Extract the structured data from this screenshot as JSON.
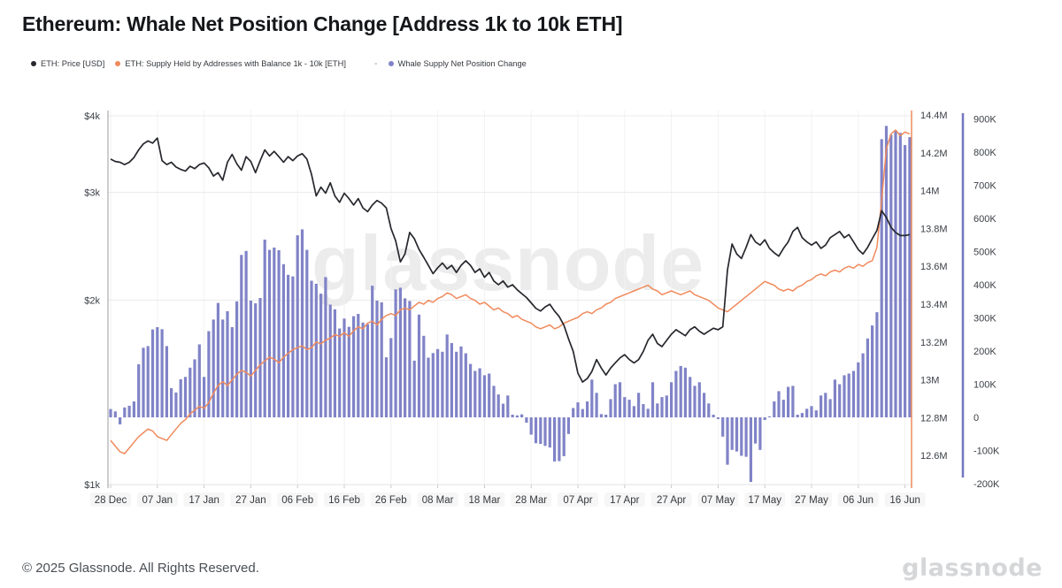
{
  "title": "Ethereum: Whale Net Position Change [Address 1k to 10k ETH]",
  "legend": {
    "separator": "-"
  },
  "watermark": {
    "text": "glassnode"
  },
  "footer": {
    "copyright": "© 2025 Glassnode. All Rights Reserved.",
    "brand": "glassnode"
  },
  "chart_data": {
    "type": "mixed",
    "title": "Ethereum: Whale Net Position Change [Address 1k to 10k ETH]",
    "grid": true,
    "legend_position": "top-left",
    "x_axis": {
      "start": "28 Dec",
      "end": "16 Jun",
      "points": 172,
      "tick_interval_days": 10,
      "tick_labels": [
        "28 Dec",
        "07 Jan",
        "17 Jan",
        "27 Jan",
        "06 Feb",
        "16 Feb",
        "26 Feb",
        "08 Mar",
        "18 Mar",
        "28 Mar",
        "07 Apr",
        "17 Apr",
        "27 Apr",
        "07 May",
        "17 May",
        "27 May",
        "06 Jun",
        "16 Jun"
      ]
    },
    "axes": {
      "price_usd": {
        "side": "left",
        "scale": "log",
        "tick_labels": [
          "$4k",
          "$3k",
          "$2k",
          "$1k"
        ],
        "tick_values_kusd": [
          4,
          3,
          2,
          1
        ]
      },
      "supply_eth": {
        "side": "right-inner",
        "scale": "linear",
        "tick_labels": [
          "14.4M",
          "14.2M",
          "14M",
          "13.8M",
          "13.6M",
          "13.4M",
          "13.2M",
          "13M",
          "12.8M",
          "12.6M"
        ],
        "tick_values_m": [
          14.4,
          14.2,
          14.0,
          13.8,
          13.6,
          13.4,
          13.2,
          13.0,
          12.8,
          12.6
        ]
      },
      "net_change_eth": {
        "side": "right-outer",
        "scale": "linear",
        "tick_labels": [
          "900K",
          "800K",
          "700K",
          "600K",
          "500K",
          "400K",
          "300K",
          "200K",
          "100K",
          "0",
          "-100K",
          "-200K"
        ],
        "tick_values_k": [
          900,
          800,
          700,
          600,
          500,
          400,
          300,
          200,
          100,
          0,
          -100,
          -200
        ]
      }
    },
    "series": [
      {
        "name": "ETH: Price [USD]",
        "type": "line",
        "axis": "price_usd",
        "color": "#26282d",
        "unit": "kUSD",
        "values": [
          3.4,
          3.37,
          3.36,
          3.33,
          3.36,
          3.42,
          3.52,
          3.6,
          3.64,
          3.61,
          3.68,
          3.38,
          3.33,
          3.36,
          3.3,
          3.27,
          3.25,
          3.31,
          3.28,
          3.33,
          3.35,
          3.29,
          3.19,
          3.23,
          3.14,
          3.36,
          3.46,
          3.34,
          3.26,
          3.43,
          3.37,
          3.23,
          3.38,
          3.52,
          3.44,
          3.5,
          3.43,
          3.36,
          3.43,
          3.38,
          3.44,
          3.47,
          3.4,
          3.21,
          2.96,
          3.06,
          2.99,
          3.11,
          2.96,
          2.89,
          2.99,
          2.93,
          2.86,
          2.93,
          2.83,
          2.79,
          2.86,
          2.91,
          2.88,
          2.83,
          2.62,
          2.5,
          2.31,
          2.38,
          2.58,
          2.52,
          2.42,
          2.35,
          2.28,
          2.21,
          2.26,
          2.3,
          2.25,
          2.28,
          2.22,
          2.28,
          2.32,
          2.28,
          2.22,
          2.25,
          2.18,
          2.22,
          2.15,
          2.12,
          2.15,
          2.1,
          2.12,
          2.08,
          2.05,
          2.02,
          1.98,
          1.94,
          1.92,
          1.95,
          1.97,
          1.92,
          1.88,
          1.82,
          1.73,
          1.65,
          1.52,
          1.47,
          1.49,
          1.53,
          1.6,
          1.55,
          1.51,
          1.55,
          1.58,
          1.61,
          1.63,
          1.6,
          1.58,
          1.6,
          1.65,
          1.72,
          1.76,
          1.7,
          1.68,
          1.72,
          1.76,
          1.79,
          1.77,
          1.75,
          1.79,
          1.81,
          1.78,
          1.76,
          1.78,
          1.8,
          1.79,
          1.81,
          2.24,
          2.47,
          2.38,
          2.34,
          2.44,
          2.56,
          2.49,
          2.46,
          2.51,
          2.43,
          2.39,
          2.36,
          2.43,
          2.49,
          2.59,
          2.63,
          2.53,
          2.49,
          2.46,
          2.49,
          2.43,
          2.46,
          2.53,
          2.56,
          2.59,
          2.53,
          2.56,
          2.49,
          2.42,
          2.38,
          2.44,
          2.52,
          2.6,
          2.8,
          2.73,
          2.63,
          2.58,
          2.55,
          2.55,
          2.56
        ]
      },
      {
        "name": "ETH: Supply Held by Addresses with Balance 1k - 10k [ETH]",
        "type": "line",
        "axis": "supply_eth",
        "color": "#f08a5c",
        "unit": "M ETH",
        "values": [
          12.68,
          12.65,
          12.62,
          12.61,
          12.64,
          12.67,
          12.7,
          12.72,
          12.74,
          12.73,
          12.7,
          12.69,
          12.68,
          12.71,
          12.74,
          12.77,
          12.79,
          12.82,
          12.84,
          12.86,
          12.85,
          12.88,
          12.93,
          12.97,
          12.99,
          12.97,
          13.0,
          13.03,
          13.05,
          13.04,
          13.02,
          13.05,
          13.08,
          13.1,
          13.12,
          13.11,
          13.09,
          13.12,
          13.14,
          13.16,
          13.17,
          13.18,
          13.16,
          13.17,
          13.2,
          13.19,
          13.21,
          13.22,
          13.24,
          13.23,
          13.25,
          13.23,
          13.26,
          13.28,
          13.27,
          13.3,
          13.31,
          13.29,
          13.32,
          13.34,
          13.35,
          13.34,
          13.37,
          13.38,
          13.37,
          13.39,
          13.41,
          13.4,
          13.42,
          13.41,
          13.43,
          13.44,
          13.46,
          13.45,
          13.43,
          13.44,
          13.45,
          13.43,
          13.42,
          13.4,
          13.41,
          13.39,
          13.37,
          13.38,
          13.36,
          13.35,
          13.33,
          13.34,
          13.32,
          13.31,
          13.3,
          13.28,
          13.27,
          13.28,
          13.29,
          13.27,
          13.28,
          13.3,
          13.31,
          13.32,
          13.33,
          13.35,
          13.36,
          13.35,
          13.37,
          13.38,
          13.4,
          13.41,
          13.43,
          13.44,
          13.45,
          13.46,
          13.47,
          13.48,
          13.49,
          13.5,
          13.48,
          13.47,
          13.45,
          13.46,
          13.47,
          13.46,
          13.45,
          13.46,
          13.47,
          13.45,
          13.44,
          13.43,
          13.42,
          13.4,
          13.38,
          13.37,
          13.36,
          13.38,
          13.4,
          13.42,
          13.44,
          13.46,
          13.48,
          13.5,
          13.52,
          13.51,
          13.5,
          13.48,
          13.47,
          13.48,
          13.47,
          13.49,
          13.5,
          13.52,
          13.53,
          13.55,
          13.56,
          13.55,
          13.57,
          13.58,
          13.57,
          13.59,
          13.6,
          13.59,
          13.61,
          13.6,
          13.62,
          13.63,
          13.7,
          13.95,
          14.22,
          14.3,
          14.32,
          14.29,
          14.31,
          14.3
        ]
      },
      {
        "name": "Whale Supply Net Position Change",
        "type": "bar",
        "axis": "net_change_eth",
        "color": "#8083c7",
        "unit": "K ETH",
        "values": [
          25,
          18,
          -21,
          30,
          35,
          48,
          160,
          210,
          215,
          265,
          272,
          266,
          215,
          88,
          75,
          115,
          122,
          150,
          175,
          220,
          122,
          260,
          295,
          345,
          295,
          320,
          272,
          350,
          490,
          502,
          352,
          344,
          360,
          536,
          505,
          512,
          504,
          462,
          430,
          425,
          549,
          567,
          505,
          412,
          403,
          373,
          423,
          340,
          326,
          268,
          298,
          273,
          305,
          312,
          286,
          281,
          397,
          352,
          347,
          181,
          239,
          386,
          391,
          359,
          351,
          171,
          310,
          246,
          180,
          194,
          206,
          198,
          250,
          224,
          198,
          214,
          193,
          161,
          140,
          148,
          127,
          132,
          95,
          69,
          41,
          66,
          8,
          6,
          9,
          -16,
          -52,
          -78,
          -80,
          -86,
          -91,
          -133,
          -132,
          -117,
          -50,
          28,
          45,
          25,
          48,
          114,
          74,
          10,
          8,
          55,
          100,
          106,
          61,
          53,
          34,
          74,
          40,
          26,
          106,
          42,
          61,
          66,
          106,
          140,
          155,
          150,
          122,
          95,
          106,
          74,
          42,
          8,
          -5,
          -58,
          -143,
          -98,
          -103,
          -116,
          -119,
          -195,
          -79,
          -98,
          -8,
          3,
          48,
          79,
          53,
          92,
          95,
          8,
          13,
          26,
          34,
          21,
          66,
          74,
          55,
          114,
          100,
          127,
          132,
          140,
          166,
          193,
          238,
          277,
          317,
          839,
          879,
          852,
          866,
          858,
          821,
          845
        ]
      }
    ]
  }
}
